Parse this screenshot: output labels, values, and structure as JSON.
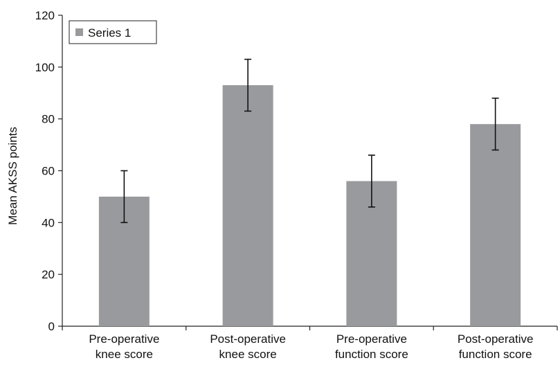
{
  "chart_data": {
    "type": "bar",
    "title": "",
    "xlabel": "",
    "ylabel": "Mean AKSS points",
    "ylim": [
      0,
      120
    ],
    "yticks": [
      0,
      20,
      40,
      60,
      80,
      100,
      120
    ],
    "categories": [
      [
        "Pre-operative",
        "knee score"
      ],
      [
        "Post-operative",
        "knee score"
      ],
      [
        "Pre-operative",
        "function score"
      ],
      [
        "Post-operative",
        "function score"
      ]
    ],
    "series": [
      {
        "name": "Series 1",
        "values": [
          50,
          93,
          56,
          78
        ],
        "error": [
          10,
          10,
          10,
          10
        ],
        "color": "#999a9d"
      }
    ],
    "legend": {
      "position": "top-left",
      "entries": [
        "Series 1"
      ]
    },
    "grid": false
  }
}
